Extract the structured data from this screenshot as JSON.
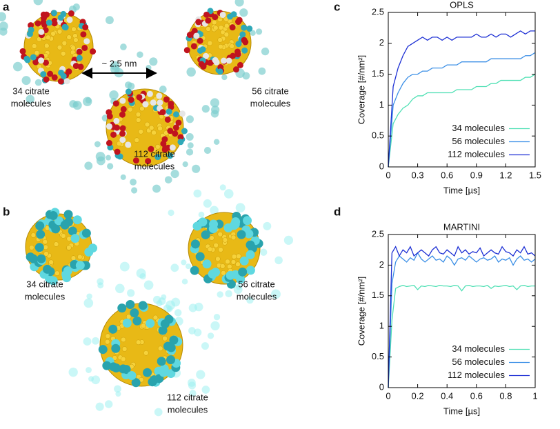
{
  "panel_labels": [
    "a",
    "b",
    "c",
    "d"
  ],
  "scale_bar": "~ 2.5 nm",
  "renders": {
    "a": [
      [
        "34 citrate",
        "molecules"
      ],
      [
        "56 citrate",
        "molecules"
      ],
      [
        "112 citrate",
        "molecules"
      ]
    ],
    "b": [
      [
        "34 citrate",
        "molecules"
      ],
      [
        "56 citrate",
        "molecules"
      ],
      [
        "112 citrate",
        "molecules"
      ]
    ]
  },
  "chart_data": [
    {
      "type": "line",
      "title": "OPLS",
      "x_label": "Time [µs]",
      "y_label": "Coverage [#/nm²]",
      "x": [
        0,
        0.05,
        0.1,
        0.15,
        0.2,
        0.25,
        0.3,
        0.35,
        0.4,
        0.45,
        0.5,
        0.55,
        0.6,
        0.65,
        0.7,
        0.75,
        0.8,
        0.85,
        0.9,
        0.95,
        1.0,
        1.05,
        1.1,
        1.15,
        1.2,
        1.25,
        1.3,
        1.35,
        1.4,
        1.45,
        1.5
      ],
      "xlim": [
        0,
        1.5
      ],
      "xticks": [
        0,
        0.3,
        0.6,
        0.9,
        1.2,
        1.5
      ],
      "ylim": [
        0,
        2.5
      ],
      "yticks": [
        0,
        0.5,
        1,
        1.5,
        2,
        2.5
      ],
      "legend": "lower right",
      "series": [
        {
          "name": "34 molecules",
          "color": "#4fe0b4",
          "values": [
            0,
            0.7,
            0.85,
            0.95,
            1.0,
            1.1,
            1.15,
            1.15,
            1.2,
            1.2,
            1.2,
            1.2,
            1.2,
            1.2,
            1.25,
            1.25,
            1.25,
            1.25,
            1.3,
            1.3,
            1.3,
            1.35,
            1.35,
            1.4,
            1.4,
            1.4,
            1.4,
            1.4,
            1.45,
            1.45,
            1.5
          ]
        },
        {
          "name": "56 molecules",
          "color": "#3b8fe6",
          "values": [
            0,
            1.0,
            1.2,
            1.35,
            1.45,
            1.5,
            1.5,
            1.55,
            1.55,
            1.6,
            1.6,
            1.6,
            1.65,
            1.65,
            1.65,
            1.7,
            1.7,
            1.7,
            1.7,
            1.7,
            1.7,
            1.75,
            1.75,
            1.75,
            1.75,
            1.75,
            1.75,
            1.75,
            1.8,
            1.8,
            1.85
          ]
        },
        {
          "name": "112 molecules",
          "color": "#1c2fd4",
          "values": [
            0,
            1.3,
            1.6,
            1.8,
            1.95,
            2.0,
            2.05,
            2.1,
            2.05,
            2.1,
            2.1,
            2.05,
            2.1,
            2.05,
            2.1,
            2.1,
            2.1,
            2.1,
            2.15,
            2.1,
            2.1,
            2.15,
            2.1,
            2.15,
            2.15,
            2.1,
            2.15,
            2.2,
            2.15,
            2.2,
            2.2
          ]
        }
      ]
    },
    {
      "type": "line",
      "title": "MARTINI",
      "x_label": "Time [µs]",
      "y_label": "Coverage [#/nm²]",
      "x": [
        0,
        0.025,
        0.05,
        0.075,
        0.1,
        0.125,
        0.15,
        0.175,
        0.2,
        0.225,
        0.25,
        0.275,
        0.3,
        0.325,
        0.35,
        0.375,
        0.4,
        0.425,
        0.45,
        0.475,
        0.5,
        0.525,
        0.55,
        0.575,
        0.6,
        0.625,
        0.65,
        0.675,
        0.7,
        0.725,
        0.75,
        0.775,
        0.8,
        0.825,
        0.85,
        0.875,
        0.9,
        0.925,
        0.95,
        0.975,
        1
      ],
      "xlim": [
        0,
        1
      ],
      "xticks": [
        0,
        0.2,
        0.4,
        0.6,
        0.8,
        1
      ],
      "ylim": [
        0,
        2.5
      ],
      "yticks": [
        0,
        0.5,
        1,
        1.5,
        2,
        2.5
      ],
      "legend": "lower right",
      "series": [
        {
          "name": "34 molecules",
          "color": "#4fe0b4",
          "values": [
            0,
            1.1,
            1.62,
            1.65,
            1.67,
            1.65,
            1.66,
            1.67,
            1.6,
            1.66,
            1.65,
            1.67,
            1.66,
            1.65,
            1.67,
            1.66,
            1.66,
            1.65,
            1.67,
            1.66,
            1.58,
            1.66,
            1.67,
            1.65,
            1.66,
            1.66,
            1.65,
            1.67,
            1.62,
            1.66,
            1.65,
            1.66,
            1.67,
            1.65,
            1.66,
            1.6,
            1.66,
            1.67,
            1.65,
            1.66,
            1.66
          ]
        },
        {
          "name": "56 molecules",
          "color": "#3b8fe6",
          "values": [
            0,
            1.7,
            2.05,
            2.15,
            2.1,
            2.05,
            2.12,
            2.08,
            2.2,
            2.1,
            2.05,
            2.1,
            2.15,
            2.08,
            2.1,
            2.05,
            2.15,
            2.1,
            2.0,
            2.1,
            2.12,
            2.08,
            2.15,
            2.1,
            2.05,
            2.1,
            2.12,
            2.08,
            2.1,
            2.15,
            2.05,
            2.1,
            2.08,
            2.12,
            2.0,
            2.1,
            2.15,
            2.08,
            2.1,
            2.05,
            2.1
          ]
        },
        {
          "name": "112 molecules",
          "color": "#1c2fd4",
          "values": [
            0,
            2.2,
            2.3,
            2.15,
            2.25,
            2.2,
            2.3,
            2.15,
            2.2,
            2.25,
            2.2,
            2.15,
            2.25,
            2.3,
            2.2,
            2.18,
            2.25,
            2.2,
            2.15,
            2.3,
            2.2,
            2.25,
            2.18,
            2.22,
            2.2,
            2.28,
            2.15,
            2.2,
            2.25,
            2.2,
            2.18,
            2.3,
            2.22,
            2.2,
            2.15,
            2.25,
            2.2,
            2.3,
            2.18,
            2.2,
            2.15
          ]
        }
      ]
    }
  ]
}
